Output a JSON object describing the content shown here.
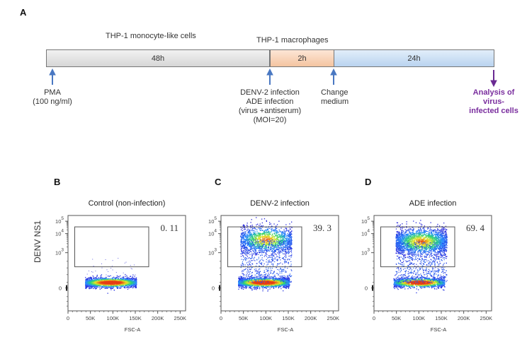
{
  "panel_a": {
    "letter": "A",
    "phase_labels": {
      "monocytes": "THP-1 monocyte-like cells",
      "macrophages": "THP-1 macrophages"
    },
    "segments": [
      {
        "label": "48h",
        "color": "#e2e2e2"
      },
      {
        "label": "2h",
        "color": "#f8d2b4"
      },
      {
        "label": "24h",
        "color": "#cfe0f4"
      }
    ],
    "events": [
      {
        "lines": [
          "PMA",
          "(100 ng/ml)"
        ],
        "arrow": "up",
        "color": "#4a78c2"
      },
      {
        "lines": [
          "DENV-2 infection",
          "ADE infection",
          "(virus +antiserum)",
          "(MOI=20)"
        ],
        "arrow": "up",
        "color": "#4a78c2"
      },
      {
        "lines": [
          "Change",
          "medium"
        ],
        "arrow": "up",
        "color": "#4a78c2"
      },
      {
        "lines": [
          "Analysis of",
          "virus-",
          "infected cells"
        ],
        "arrow": "down",
        "color": "#6a2a92"
      }
    ]
  },
  "chart_data": [
    {
      "type": "scatter",
      "panel": "B",
      "title": "Control (non-infection)",
      "xlabel": "FSC-A",
      "ylabel": "DENV NS1",
      "x_ticks": [
        "0",
        "50K",
        "100K",
        "150K",
        "200K",
        "250K"
      ],
      "xlim": [
        0,
        262144
      ],
      "y_ticks": [
        "0",
        "10^3",
        "10^4",
        "10^5"
      ],
      "y_scale": "biexponential",
      "gate": {
        "x_range": [
          15000,
          180000
        ],
        "y_range": [
          600,
          35000
        ],
        "percent": "0. 11"
      },
      "populations": [
        {
          "name": "negative",
          "x_center": 95000,
          "x_spread": 60000,
          "y_level": "~200 (below 10^3)",
          "density": "high"
        }
      ]
    },
    {
      "type": "scatter",
      "panel": "C",
      "title": "DENV-2 infection",
      "xlabel": "FSC-A",
      "ylabel": "",
      "x_ticks": [
        "0",
        "50K",
        "100K",
        "150K",
        "200K",
        "250K"
      ],
      "xlim": [
        0,
        262144
      ],
      "y_ticks": [
        "0",
        "10^3",
        "10^4",
        "10^5"
      ],
      "y_scale": "biexponential",
      "gate": {
        "x_range": [
          15000,
          180000
        ],
        "y_range": [
          600,
          35000
        ],
        "percent": "39. 3"
      },
      "populations": [
        {
          "name": "negative",
          "x_center": 95000,
          "x_spread": 60000,
          "y_level": "~200",
          "density": "high"
        },
        {
          "name": "NS1-positive",
          "x_center": 100000,
          "x_spread": 60000,
          "y_level": "~5000",
          "density": "medium"
        }
      ]
    },
    {
      "type": "scatter",
      "panel": "D",
      "title": "ADE infection",
      "xlabel": "FSC-A",
      "ylabel": "",
      "x_ticks": [
        "0",
        "50K",
        "100K",
        "150K",
        "200K",
        "250K"
      ],
      "xlim": [
        0,
        262144
      ],
      "y_ticks": [
        "0",
        "10^3",
        "10^4",
        "10^5"
      ],
      "y_scale": "biexponential",
      "gate": {
        "x_range": [
          15000,
          180000
        ],
        "y_range": [
          600,
          35000
        ],
        "percent": "69. 4"
      },
      "populations": [
        {
          "name": "negative",
          "x_center": 100000,
          "x_spread": 60000,
          "y_level": "~200",
          "density": "medium"
        },
        {
          "name": "NS1-positive",
          "x_center": 105000,
          "x_spread": 60000,
          "y_level": "~4000",
          "density": "high"
        }
      ]
    }
  ]
}
